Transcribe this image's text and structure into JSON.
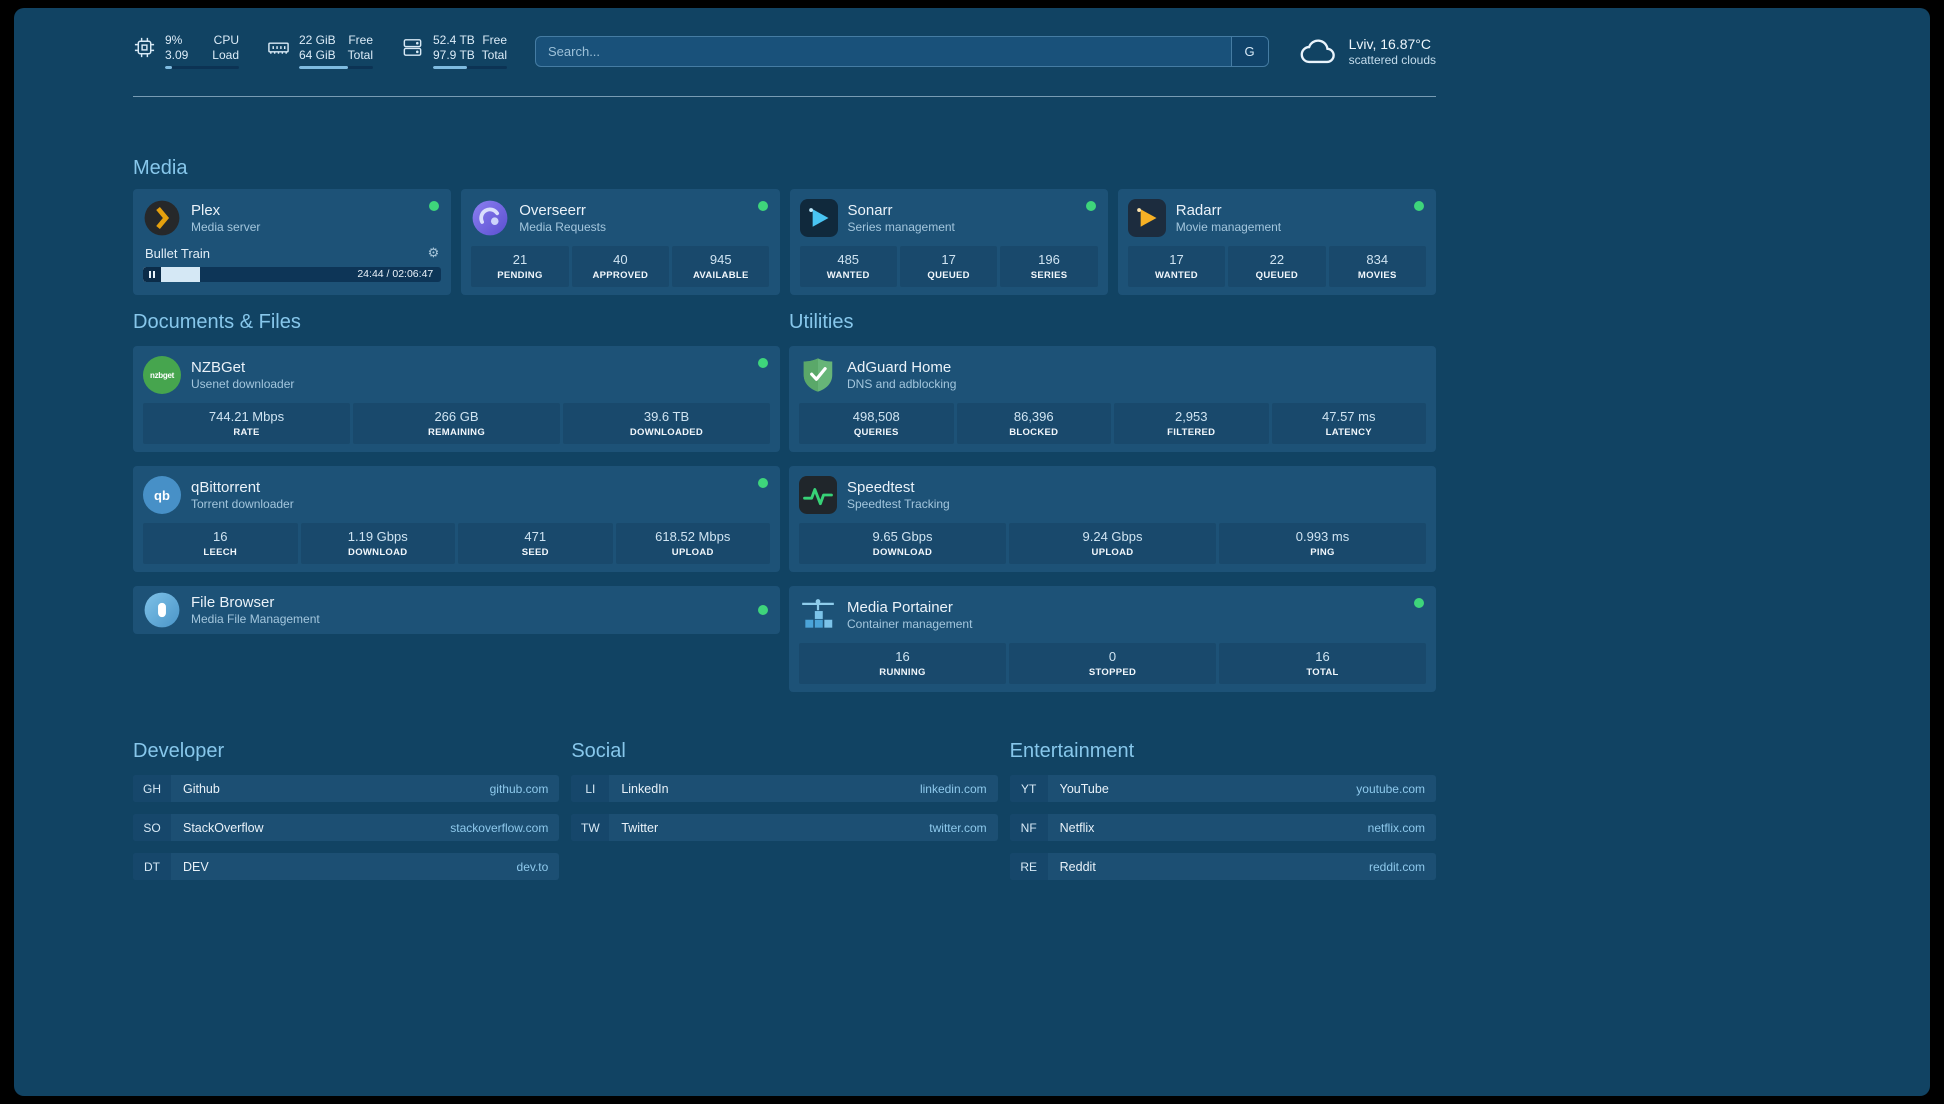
{
  "theme": {
    "background": "#114363",
    "card": "#1d5277",
    "accent": "#87c7eb",
    "status_online": "#3ed57b",
    "progress_fill": "#7fbbe0"
  },
  "icons": {
    "header": [
      "cpu-icon",
      "memory-icon",
      "disk-icon"
    ],
    "search_provider": "G",
    "weather": "cloud-icon",
    "apps": [
      "plex-icon",
      "overseerr-icon",
      "sonarr-icon",
      "radarr-icon",
      "nzbget-icon",
      "qbittorrent-icon",
      "filebrowser-icon",
      "adguard-icon",
      "speedtest-icon",
      "portainer-icon"
    ]
  },
  "header": {
    "cpu": {
      "values": [
        "9%",
        "3.09"
      ],
      "labels": [
        "CPU",
        "Load"
      ],
      "progress_pct": 9
    },
    "memory": {
      "values": [
        "22 GiB",
        "64 GiB"
      ],
      "labels": [
        "Free",
        "Total"
      ],
      "progress_pct": 66
    },
    "disk": {
      "values": [
        "52.4 TB",
        "97.9 TB"
      ],
      "labels": [
        "Free",
        "Total"
      ],
      "progress_pct": 46
    },
    "search": {
      "placeholder": "Search...",
      "button": "G"
    },
    "weather": {
      "location": "Lviv, 16.87°C",
      "condition": "scattered clouds"
    }
  },
  "media": {
    "title": "Media",
    "plex": {
      "name": "Plex",
      "subtitle": "Media server",
      "now_playing": "Bullet Train",
      "time": "24:44 / 02:06:47",
      "progress_pct": 19,
      "icon_glyph": "❯"
    },
    "overseerr": {
      "name": "Overseerr",
      "subtitle": "Media Requests",
      "stats": [
        {
          "value": "21",
          "label": "PENDING"
        },
        {
          "value": "40",
          "label": "APPROVED"
        },
        {
          "value": "945",
          "label": "AVAILABLE"
        }
      ]
    },
    "sonarr": {
      "name": "Sonarr",
      "subtitle": "Series management",
      "stats": [
        {
          "value": "485",
          "label": "WANTED"
        },
        {
          "value": "17",
          "label": "QUEUED"
        },
        {
          "value": "196",
          "label": "SERIES"
        }
      ]
    },
    "radarr": {
      "name": "Radarr",
      "subtitle": "Movie management",
      "stats": [
        {
          "value": "17",
          "label": "WANTED"
        },
        {
          "value": "22",
          "label": "QUEUED"
        },
        {
          "value": "834",
          "label": "MOVIES"
        }
      ]
    }
  },
  "documents": {
    "title": "Documents & Files",
    "nzbget": {
      "name": "NZBGet",
      "subtitle": "Usenet downloader",
      "icon_text": "nzbget",
      "stats": [
        {
          "value": "744.21 Mbps",
          "label": "RATE"
        },
        {
          "value": "266 GB",
          "label": "REMAINING"
        },
        {
          "value": "39.6 TB",
          "label": "DOWNLOADED"
        }
      ]
    },
    "qbittorrent": {
      "name": "qBittorrent",
      "subtitle": "Torrent downloader",
      "icon_text": "qb",
      "stats": [
        {
          "value": "16",
          "label": "LEECH"
        },
        {
          "value": "1.19 Gbps",
          "label": "DOWNLOAD"
        },
        {
          "value": "471",
          "label": "SEED"
        },
        {
          "value": "618.52 Mbps",
          "label": "UPLOAD"
        }
      ]
    },
    "filebrowser": {
      "name": "File Browser",
      "subtitle": "Media File Management"
    }
  },
  "utilities": {
    "title": "Utilities",
    "adguard": {
      "name": "AdGuard Home",
      "subtitle": "DNS and adblocking",
      "stats": [
        {
          "value": "498,508",
          "label": "QUERIES"
        },
        {
          "value": "86,396",
          "label": "BLOCKED"
        },
        {
          "value": "2,953",
          "label": "FILTERED"
        },
        {
          "value": "47.57 ms",
          "label": "LATENCY"
        }
      ]
    },
    "speedtest": {
      "name": "Speedtest",
      "subtitle": "Speedtest Tracking",
      "stats": [
        {
          "value": "9.65 Gbps",
          "label": "DOWNLOAD"
        },
        {
          "value": "9.24 Gbps",
          "label": "UPLOAD"
        },
        {
          "value": "0.993 ms",
          "label": "PING"
        }
      ]
    },
    "portainer": {
      "name": "Media Portainer",
      "subtitle": "Container management",
      "stats": [
        {
          "value": "16",
          "label": "RUNNING"
        },
        {
          "value": "0",
          "label": "STOPPED"
        },
        {
          "value": "16",
          "label": "TOTAL"
        }
      ]
    }
  },
  "bookmarks": [
    {
      "title": "Developer",
      "items": [
        {
          "abbr": "GH",
          "name": "Github",
          "domain": "github.com"
        },
        {
          "abbr": "SO",
          "name": "StackOverflow",
          "domain": "stackoverflow.com"
        },
        {
          "abbr": "DT",
          "name": "DEV",
          "domain": "dev.to"
        }
      ]
    },
    {
      "title": "Social",
      "items": [
        {
          "abbr": "LI",
          "name": "LinkedIn",
          "domain": "linkedin.com"
        },
        {
          "abbr": "TW",
          "name": "Twitter",
          "domain": "twitter.com"
        }
      ]
    },
    {
      "title": "Entertainment",
      "items": [
        {
          "abbr": "YT",
          "name": "YouTube",
          "domain": "youtube.com"
        },
        {
          "abbr": "NF",
          "name": "Netflix",
          "domain": "netflix.com"
        },
        {
          "abbr": "RE",
          "name": "Reddit",
          "domain": "reddit.com"
        }
      ]
    }
  ]
}
